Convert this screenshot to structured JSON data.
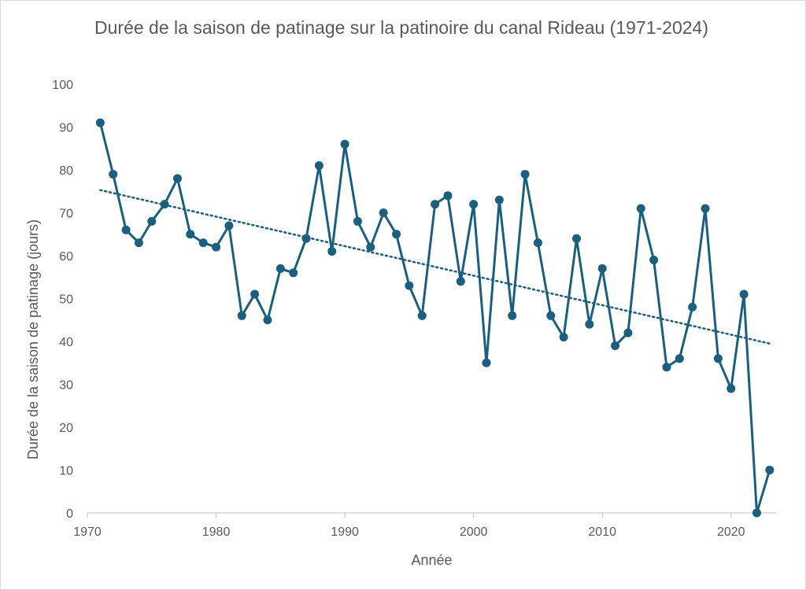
{
  "chart_data": {
    "type": "line",
    "title": "Durée de la saison de patinage sur la patinoire du canal Rideau (1971-2024)",
    "xlabel": "Année",
    "ylabel": "Durée de la saison de patinage (jours)",
    "xlim": [
      1970,
      2023.5
    ],
    "ylim": [
      0,
      100
    ],
    "x_ticks": [
      1970,
      1980,
      1990,
      2000,
      2010,
      2020
    ],
    "y_ticks": [
      0,
      10,
      20,
      30,
      40,
      50,
      60,
      70,
      80,
      90,
      100
    ],
    "grid": false,
    "series": [
      {
        "color": "#1b5e7e",
        "marker": "circle",
        "x": [
          1971,
          1972,
          1973,
          1974,
          1975,
          1976,
          1977,
          1978,
          1979,
          1980,
          1981,
          1982,
          1983,
          1984,
          1985,
          1986,
          1987,
          1988,
          1989,
          1990,
          1991,
          1992,
          1993,
          1994,
          1995,
          1996,
          1997,
          1998,
          1999,
          2000,
          2001,
          2002,
          2003,
          2004,
          2005,
          2006,
          2007,
          2008,
          2009,
          2010,
          2011,
          2012,
          2013,
          2014,
          2015,
          2016,
          2017,
          2018,
          2019,
          2020,
          2021,
          2022,
          2023
        ],
        "y": [
          91,
          79,
          66,
          63,
          68,
          72,
          78,
          65,
          63,
          62,
          67,
          46,
          51,
          45,
          57,
          56,
          64,
          81,
          61,
          86,
          68,
          62,
          70,
          65,
          53,
          46,
          72,
          74,
          54,
          72,
          35,
          73,
          46,
          79,
          63,
          46,
          41,
          64,
          44,
          57,
          39,
          42,
          71,
          59,
          34,
          36,
          48,
          71,
          36,
          29,
          51,
          0,
          10
        ]
      }
    ],
    "trendline": {
      "style": "dotted",
      "color": "#1b5e7e",
      "type": "linear",
      "x": [
        1971,
        2023
      ],
      "y": [
        75.3,
        39.5
      ]
    }
  }
}
